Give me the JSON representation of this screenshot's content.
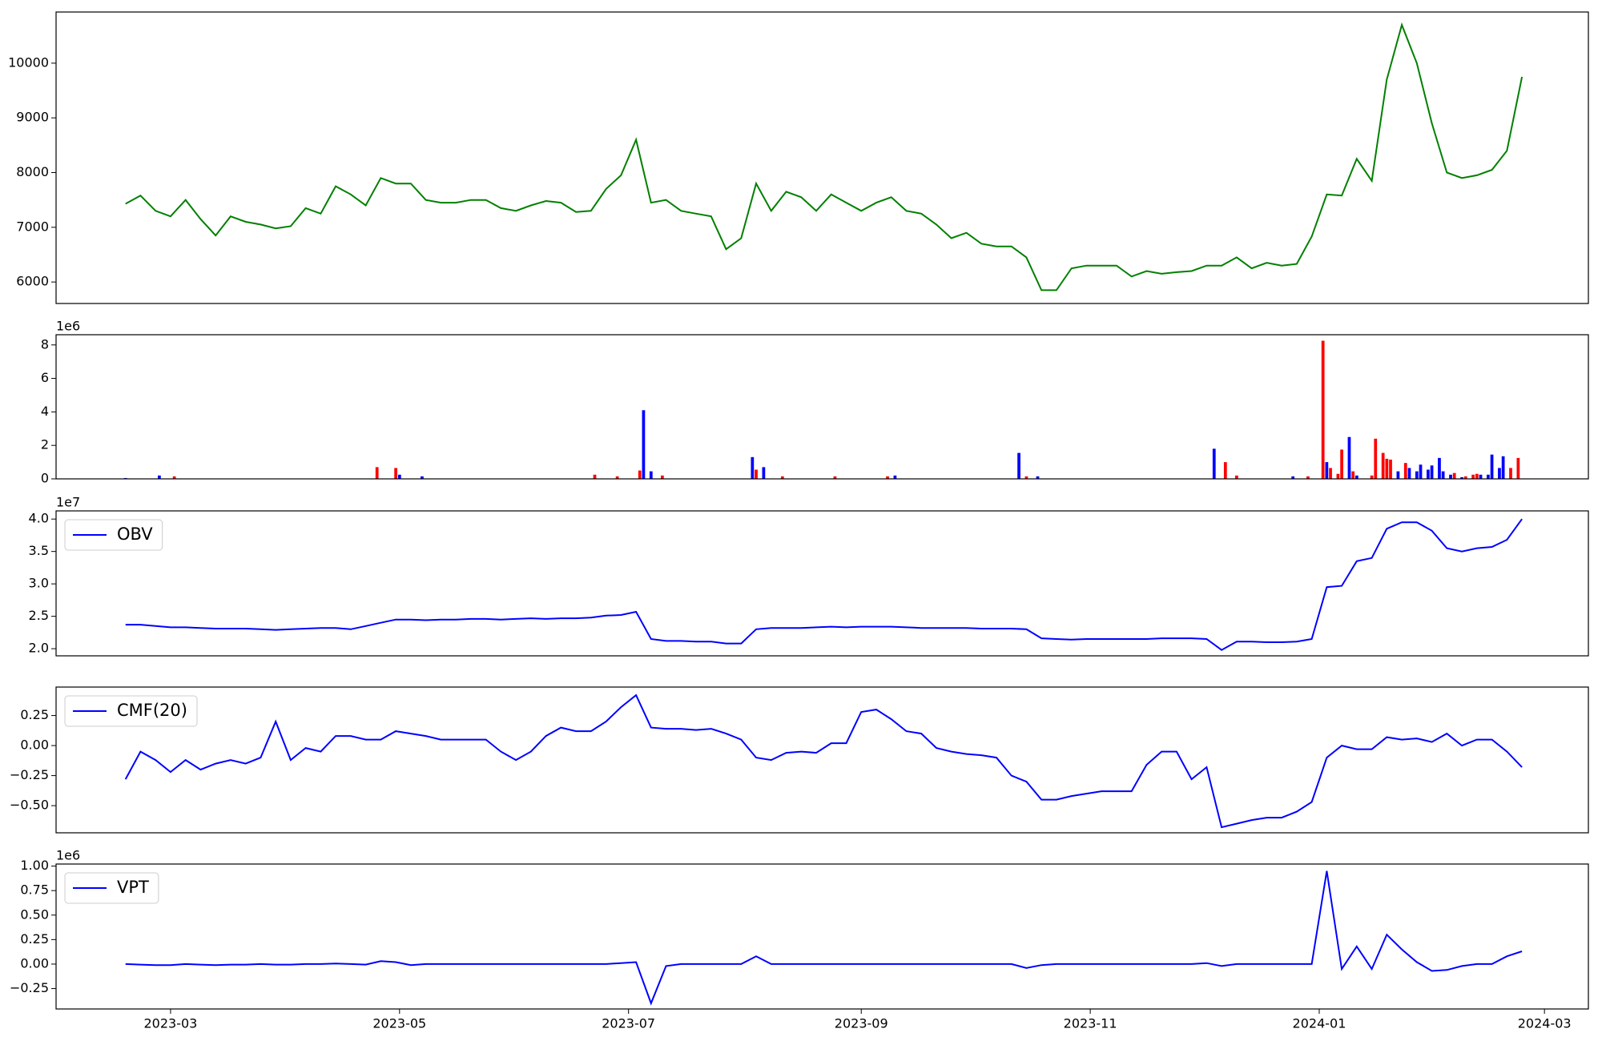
{
  "chart_data": [
    {
      "type": "line",
      "x": [
        19405,
        19409,
        19413,
        19417,
        19421,
        19425,
        19429,
        19433,
        19437,
        19441,
        19445,
        19449,
        19453,
        19457,
        19461,
        19465,
        19469,
        19473,
        19477,
        19481,
        19485,
        19489,
        19493,
        19497,
        19501,
        19505,
        19509,
        19513,
        19517,
        19521,
        19525,
        19529,
        19533,
        19537,
        19541,
        19545,
        19549,
        19553,
        19557,
        19561,
        19565,
        19569,
        19573,
        19577,
        19581,
        19585,
        19589,
        19593,
        19597,
        19601,
        19605,
        19609,
        19613,
        19617,
        19621,
        19625,
        19629,
        19633,
        19637,
        19641,
        19645,
        19649,
        19653,
        19657,
        19661,
        19665,
        19669,
        19673,
        19677,
        19681,
        19685,
        19689,
        19693,
        19697,
        19701,
        19705,
        19709,
        19713,
        19717,
        19721,
        19725,
        19729,
        19733,
        19737,
        19741,
        19745,
        19749,
        19753,
        19757,
        19761,
        19765,
        19769,
        19773,
        19777
      ],
      "series": [
        {
          "color": "#008000",
          "values": [
            7430,
            7580,
            7300,
            7200,
            7500,
            7150,
            6850,
            7200,
            7100,
            7050,
            6980,
            7020,
            7350,
            7250,
            7750,
            7600,
            7400,
            7900,
            7800,
            7800,
            7500,
            7450,
            7450,
            7500,
            7500,
            7350,
            7300,
            7400,
            7480,
            7450,
            7280,
            7300,
            7700,
            7950,
            8600,
            7450,
            7500,
            7300,
            7250,
            7200,
            6600,
            6800,
            7800,
            7300,
            7650,
            7550,
            7300,
            7600,
            7450,
            7300,
            7450,
            7550,
            7300,
            7250,
            7050,
            6800,
            6900,
            6700,
            6650,
            6650,
            6450,
            5850,
            5850,
            6250,
            6300,
            6300,
            6300,
            6100,
            6200,
            6150,
            6180,
            6200,
            6300,
            6300,
            6450,
            6250,
            6350,
            6300,
            6330,
            6830,
            7600,
            7580,
            8250,
            7850,
            9700,
            10700,
            10000,
            8900,
            8000,
            7900,
            7950,
            8050,
            8400,
            9750
          ]
        }
      ],
      "xlim": [
        19386.5,
        19794.7
      ],
      "ylim": [
        5607,
        10935
      ],
      "yticks": [
        6000,
        7000,
        8000,
        9000,
        10000
      ]
    },
    {
      "type": "bar",
      "offset_label": "1e6",
      "x": [
        19405,
        19414,
        19418,
        19472,
        19477,
        19478,
        19484,
        19530,
        19536,
        19542,
        19543,
        19545,
        19548,
        19572,
        19573,
        19575,
        19580,
        19594,
        19608,
        19610,
        19643,
        19645,
        19648,
        19695,
        19698,
        19701,
        19716,
        19720,
        19724,
        19725,
        19726,
        19728,
        19729,
        19731,
        19732,
        19733,
        19737,
        19738,
        19740,
        19741,
        19742,
        19744,
        19746,
        19747,
        19749,
        19750,
        19752,
        19753,
        19755,
        19756,
        19758,
        19759,
        19761,
        19762,
        19764,
        19765,
        19766,
        19768,
        19769,
        19771,
        19772,
        19774,
        19776
      ],
      "values": [
        50000,
        200000,
        150000,
        700000,
        650000,
        250000,
        150000,
        250000,
        150000,
        500000,
        4100000,
        450000,
        200000,
        1300000,
        550000,
        700000,
        150000,
        150000,
        150000,
        200000,
        1550000,
        150000,
        150000,
        1800000,
        1000000,
        200000,
        150000,
        150000,
        8250000,
        1000000,
        650000,
        300000,
        1750000,
        2500000,
        450000,
        200000,
        200000,
        2400000,
        1550000,
        1200000,
        1150000,
        450000,
        950000,
        650000,
        450000,
        850000,
        550000,
        800000,
        1250000,
        450000,
        250000,
        350000,
        100000,
        150000,
        250000,
        300000,
        250000,
        250000,
        1450000,
        650000,
        1350000,
        650000,
        1250000
      ],
      "colors": [
        "#0000ff",
        "#0000ff",
        "#ff0000",
        "#ff0000",
        "#ff0000",
        "#0000ff",
        "#0000ff",
        "#ff0000",
        "#ff0000",
        "#ff0000",
        "#0000ff",
        "#0000ff",
        "#ff0000",
        "#0000ff",
        "#ff0000",
        "#0000ff",
        "#ff0000",
        "#ff0000",
        "#ff0000",
        "#0000ff",
        "#0000ff",
        "#ff0000",
        "#0000ff",
        "#0000ff",
        "#ff0000",
        "#ff0000",
        "#0000ff",
        "#ff0000",
        "#ff0000",
        "#0000ff",
        "#ff0000",
        "#ff0000",
        "#ff0000",
        "#0000ff",
        "#ff0000",
        "#0000ff",
        "#ff0000",
        "#ff0000",
        "#ff0000",
        "#ff0000",
        "#ff0000",
        "#0000ff",
        "#ff0000",
        "#0000ff",
        "#0000ff",
        "#0000ff",
        "#0000ff",
        "#0000ff",
        "#0000ff",
        "#0000ff",
        "#0000ff",
        "#ff0000",
        "#0000ff",
        "#ff0000",
        "#ff0000",
        "#ff0000",
        "#0000ff",
        "#0000ff",
        "#0000ff",
        "#0000ff",
        "#0000ff",
        "#ff0000",
        "#ff0000"
      ],
      "xlim": [
        19386.5,
        19794.7
      ],
      "ylim": [
        0,
        8610000
      ],
      "yticks": [
        {
          "value": 0,
          "label": "0"
        },
        {
          "value": 2000000,
          "label": "2"
        },
        {
          "value": 4000000,
          "label": "4"
        },
        {
          "value": 6000000,
          "label": "6"
        },
        {
          "value": 8000000,
          "label": "8"
        }
      ]
    },
    {
      "type": "line",
      "offset_label": "1e7",
      "legend": "upper left",
      "x": [
        19405,
        19409,
        19413,
        19417,
        19421,
        19425,
        19429,
        19433,
        19437,
        19441,
        19445,
        19449,
        19453,
        19457,
        19461,
        19465,
        19469,
        19473,
        19477,
        19481,
        19485,
        19489,
        19493,
        19497,
        19501,
        19505,
        19509,
        19513,
        19517,
        19521,
        19525,
        19529,
        19533,
        19537,
        19541,
        19545,
        19549,
        19553,
        19557,
        19561,
        19565,
        19569,
        19573,
        19577,
        19581,
        19585,
        19589,
        19593,
        19597,
        19601,
        19605,
        19609,
        19613,
        19617,
        19621,
        19625,
        19629,
        19633,
        19637,
        19641,
        19645,
        19649,
        19653,
        19657,
        19661,
        19665,
        19669,
        19673,
        19677,
        19681,
        19685,
        19689,
        19693,
        19697,
        19701,
        19705,
        19709,
        19713,
        19717,
        19721,
        19725,
        19729,
        19733,
        19737,
        19741,
        19745,
        19749,
        19753,
        19757,
        19761,
        19765,
        19769,
        19773,
        19777
      ],
      "series": [
        {
          "name": "OBV",
          "color": "#0000ff",
          "values": [
            23700000,
            23700000,
            23500000,
            23300000,
            23300000,
            23200000,
            23100000,
            23100000,
            23100000,
            23000000,
            22900000,
            23000000,
            23100000,
            23200000,
            23200000,
            23000000,
            23500000,
            24000000,
            24500000,
            24500000,
            24400000,
            24500000,
            24500000,
            24600000,
            24600000,
            24500000,
            24600000,
            24700000,
            24600000,
            24700000,
            24700000,
            24800000,
            25100000,
            25200000,
            25700000,
            21500000,
            21200000,
            21200000,
            21100000,
            21100000,
            20800000,
            20800000,
            23000000,
            23200000,
            23200000,
            23200000,
            23300000,
            23400000,
            23300000,
            23400000,
            23400000,
            23400000,
            23300000,
            23200000,
            23200000,
            23200000,
            23200000,
            23100000,
            23100000,
            23100000,
            23000000,
            21600000,
            21500000,
            21400000,
            21500000,
            21500000,
            21500000,
            21500000,
            21500000,
            21600000,
            21600000,
            21600000,
            21500000,
            19800000,
            21100000,
            21100000,
            21000000,
            21000000,
            21100000,
            21500000,
            29500000,
            29700000,
            33500000,
            34000000,
            38500000,
            39500000,
            39500000,
            38200000,
            35500000,
            35000000,
            35500000,
            35700000,
            36800000,
            40000000
          ]
        }
      ],
      "xlim": [
        19386.5,
        19794.7
      ],
      "ylim": [
        18900000,
        41260000
      ],
      "yticks": [
        {
          "value": 20000000,
          "label": "2.0"
        },
        {
          "value": 25000000,
          "label": "2.5"
        },
        {
          "value": 30000000,
          "label": "3.0"
        },
        {
          "value": 35000000,
          "label": "3.5"
        },
        {
          "value": 40000000,
          "label": "4.0"
        }
      ]
    },
    {
      "type": "line",
      "legend": "upper left",
      "x": [
        19405,
        19409,
        19413,
        19417,
        19421,
        19425,
        19429,
        19433,
        19437,
        19441,
        19445,
        19449,
        19453,
        19457,
        19461,
        19465,
        19469,
        19473,
        19477,
        19481,
        19485,
        19489,
        19493,
        19497,
        19501,
        19505,
        19509,
        19513,
        19517,
        19521,
        19525,
        19529,
        19533,
        19537,
        19541,
        19545,
        19549,
        19553,
        19557,
        19561,
        19565,
        19569,
        19573,
        19577,
        19581,
        19585,
        19589,
        19593,
        19597,
        19601,
        19605,
        19609,
        19613,
        19617,
        19621,
        19625,
        19629,
        19633,
        19637,
        19641,
        19645,
        19649,
        19653,
        19657,
        19661,
        19665,
        19669,
        19673,
        19677,
        19681,
        19685,
        19689,
        19693,
        19697,
        19701,
        19705,
        19709,
        19713,
        19717,
        19721,
        19725,
        19729,
        19733,
        19737,
        19741,
        19745,
        19749,
        19753,
        19757,
        19761,
        19765,
        19769,
        19773,
        19777
      ],
      "series": [
        {
          "name": "CMF(20)",
          "color": "#0000ff",
          "values": [
            -0.28,
            -0.05,
            -0.12,
            -0.22,
            -0.12,
            -0.2,
            -0.15,
            -0.12,
            -0.15,
            -0.1,
            0.2,
            -0.12,
            -0.02,
            -0.05,
            0.08,
            0.08,
            0.05,
            0.05,
            0.12,
            0.1,
            0.08,
            0.05,
            0.05,
            0.05,
            0.05,
            -0.05,
            -0.12,
            -0.05,
            0.08,
            0.15,
            0.12,
            0.12,
            0.2,
            0.32,
            0.42,
            0.15,
            0.14,
            0.14,
            0.13,
            0.14,
            0.1,
            0.05,
            -0.1,
            -0.12,
            -0.06,
            -0.05,
            -0.06,
            0.02,
            0.02,
            0.28,
            0.3,
            0.22,
            0.12,
            0.1,
            -0.02,
            -0.05,
            -0.07,
            -0.08,
            -0.1,
            -0.25,
            -0.3,
            -0.45,
            -0.45,
            -0.42,
            -0.4,
            -0.38,
            -0.38,
            -0.38,
            -0.16,
            -0.05,
            -0.05,
            -0.28,
            -0.18,
            -0.68,
            -0.65,
            -0.62,
            -0.6,
            -0.6,
            -0.55,
            -0.47,
            -0.1,
            0.0,
            -0.03,
            -0.03,
            0.07,
            0.05,
            0.06,
            0.03,
            0.1,
            0.0,
            0.05,
            0.05,
            -0.05,
            -0.18
          ]
        }
      ],
      "xlim": [
        19386.5,
        19794.7
      ],
      "ylim": [
        -0.726,
        0.487
      ],
      "yticks": [
        {
          "value": -0.5,
          "label": "−0.50"
        },
        {
          "value": -0.25,
          "label": "−0.25"
        },
        {
          "value": 0,
          "label": "0.00"
        },
        {
          "value": 0.25,
          "label": "0.25"
        }
      ]
    },
    {
      "type": "line",
      "offset_label": "1e6",
      "legend": "upper left",
      "x": [
        19405,
        19409,
        19413,
        19417,
        19421,
        19425,
        19429,
        19433,
        19437,
        19441,
        19445,
        19449,
        19453,
        19457,
        19461,
        19465,
        19469,
        19473,
        19477,
        19481,
        19485,
        19489,
        19493,
        19497,
        19501,
        19505,
        19509,
        19513,
        19517,
        19521,
        19525,
        19529,
        19533,
        19537,
        19541,
        19545,
        19549,
        19553,
        19557,
        19561,
        19565,
        19569,
        19573,
        19577,
        19581,
        19585,
        19589,
        19593,
        19597,
        19601,
        19605,
        19609,
        19613,
        19617,
        19621,
        19625,
        19629,
        19633,
        19637,
        19641,
        19645,
        19649,
        19653,
        19657,
        19661,
        19665,
        19669,
        19673,
        19677,
        19681,
        19685,
        19689,
        19693,
        19697,
        19701,
        19705,
        19709,
        19713,
        19717,
        19721,
        19725,
        19729,
        19733,
        19737,
        19741,
        19745,
        19749,
        19753,
        19757,
        19761,
        19765,
        19769,
        19773,
        19777
      ],
      "series": [
        {
          "name": "VPT",
          "color": "#0000ff",
          "values": [
            0,
            -5000,
            -10000,
            -10000,
            0,
            -5000,
            -10000,
            -5000,
            -5000,
            0,
            -5000,
            -5000,
            0,
            0,
            5000,
            0,
            -5000,
            30000,
            20000,
            -10000,
            0,
            0,
            0,
            0,
            0,
            0,
            0,
            0,
            0,
            0,
            0,
            0,
            0,
            10000,
            20000,
            -400000,
            -20000,
            0,
            0,
            0,
            0,
            0,
            80000,
            0,
            0,
            0,
            0,
            0,
            0,
            0,
            0,
            0,
            0,
            0,
            0,
            0,
            0,
            0,
            0,
            0,
            -40000,
            -10000,
            0,
            0,
            0,
            0,
            0,
            0,
            0,
            0,
            0,
            0,
            10000,
            -20000,
            0,
            0,
            0,
            0,
            0,
            0,
            950000,
            -50000,
            180000,
            -50000,
            300000,
            150000,
            20000,
            -70000,
            -60000,
            -20000,
            0,
            0,
            80000,
            130000
          ]
        }
      ],
      "xlim": [
        19386.5,
        19794.7
      ],
      "ylim": [
        -458000,
        1021000
      ],
      "yticks": [
        {
          "value": -250000,
          "label": "−0.25"
        },
        {
          "value": 0,
          "label": "0.00"
        },
        {
          "value": 250000,
          "label": "0.25"
        },
        {
          "value": 500000,
          "label": "0.50"
        },
        {
          "value": 750000,
          "label": "0.75"
        },
        {
          "value": 1000000,
          "label": "1.00"
        }
      ],
      "xticks": [
        {
          "value": 19417,
          "label": "2023-03"
        },
        {
          "value": 19478,
          "label": "2023-05"
        },
        {
          "value": 19539,
          "label": "2023-07"
        },
        {
          "value": 19601,
          "label": "2023-09"
        },
        {
          "value": 19662,
          "label": "2023-11"
        },
        {
          "value": 19723,
          "label": "2024-01"
        },
        {
          "value": 19783,
          "label": "2024-03"
        }
      ]
    }
  ]
}
